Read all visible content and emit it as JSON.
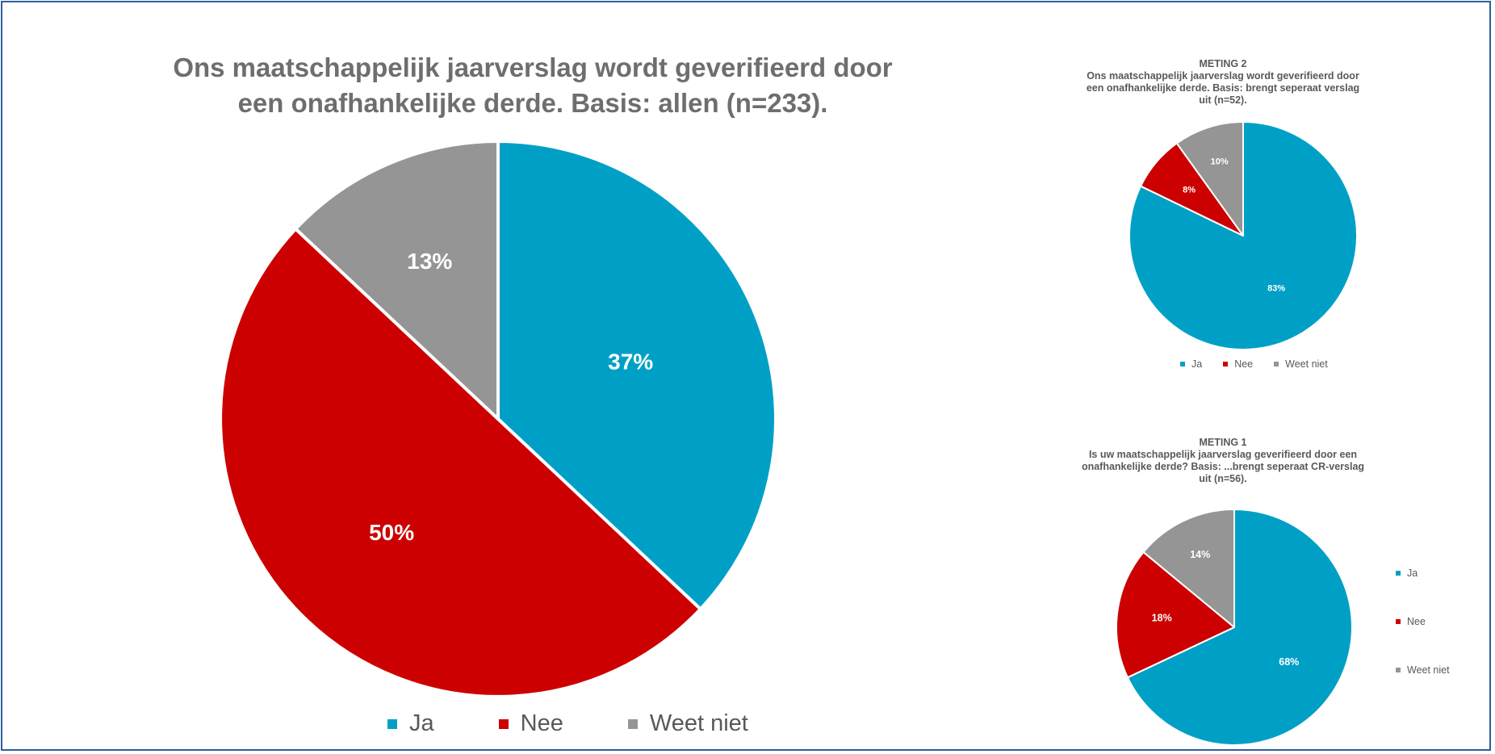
{
  "colors": {
    "ja": "#00a0c6",
    "nee": "#cc0000",
    "weet_niet": "#959595"
  },
  "chart_data": [
    {
      "type": "pie",
      "title": "Ons maatschappelijk jaarverslag wordt geverifieerd door een onafhankelijke derde. Basis: allen (n=233).",
      "title_lines": [
        "Ons maatschappelijk jaarverslag wordt geverifieerd door",
        "een onafhankelijke derde. Basis: allen (n=233)."
      ],
      "categories": [
        "Ja",
        "Nee",
        "Weet niet"
      ],
      "values": [
        37,
        50,
        13
      ],
      "data_labels": [
        "37%",
        "50%",
        "13%"
      ],
      "legend_position": "bottom"
    },
    {
      "type": "pie",
      "title": "METING 2 Ons maatschappelijk jaarverslag wordt geverifieerd door een onafhankelijke derde. Basis: brengt seperaat verslag uit (n=52).",
      "title_lines": [
        "METING 2",
        "Ons maatschappelijk jaarverslag wordt geverifieerd door",
        "een onafhankelijke derde. Basis: brengt seperaat verslag",
        "uit (n=52)."
      ],
      "categories": [
        "Ja",
        "Nee",
        "Weet niet"
      ],
      "values": [
        83,
        8,
        10
      ],
      "data_labels": [
        "83%",
        "8%",
        "10%"
      ],
      "legend_position": "bottom"
    },
    {
      "type": "pie",
      "title": "METING 1 Is uw maatschappelijk jaarverslag geverifieerd door een onafhankelijke derde? Basis: ...brengt seperaat CR-verslag uit (n=56).",
      "title_lines": [
        "METING 1",
        "Is uw maatschappelijk jaarverslag geverifieerd door een",
        "onafhankelijke derde? Basis: ...brengt seperaat CR-verslag",
        "uit (n=56)."
      ],
      "categories": [
        "Ja",
        "Nee",
        "Weet niet"
      ],
      "values": [
        68,
        18,
        14
      ],
      "data_labels": [
        "68%",
        "18%",
        "14%"
      ],
      "legend_position": "right"
    }
  ]
}
